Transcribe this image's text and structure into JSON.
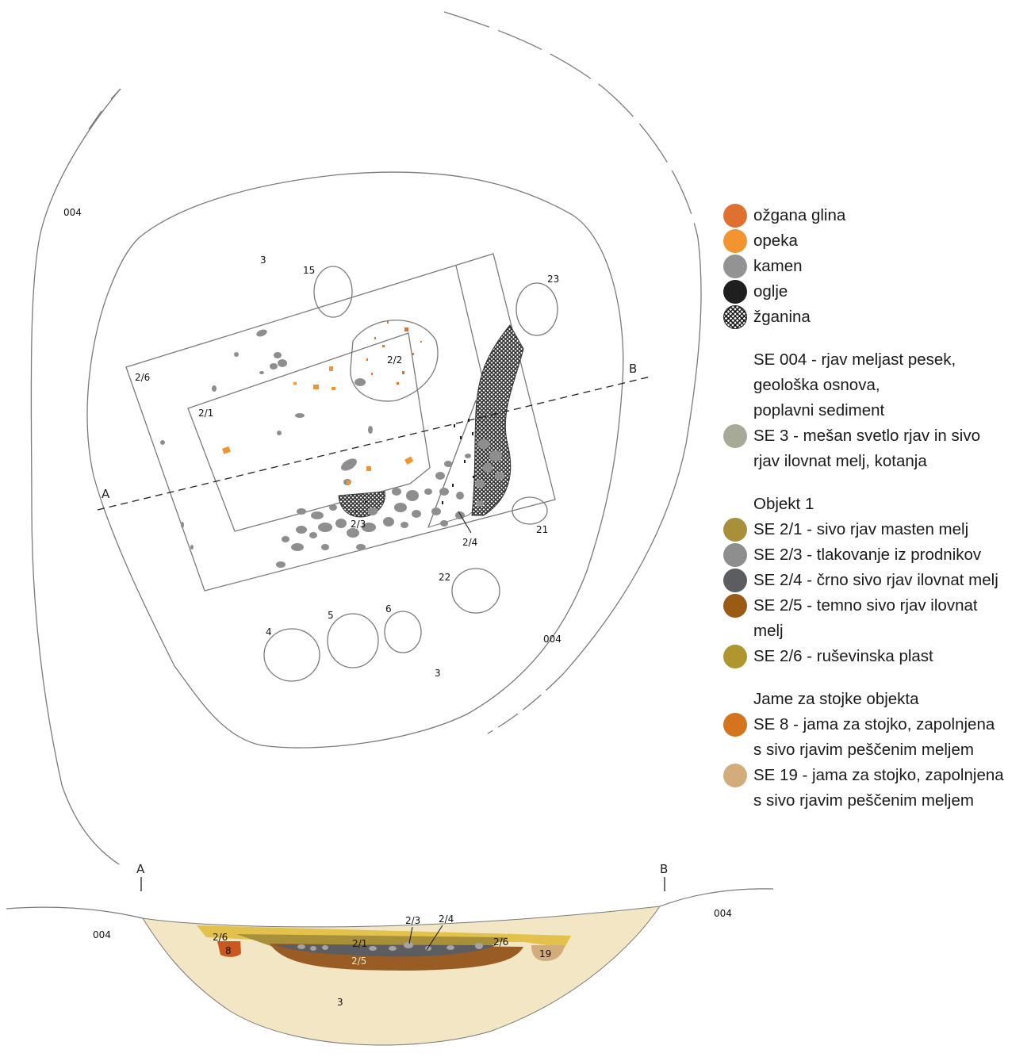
{
  "plan": {
    "labels": {
      "l004_tl": "004",
      "l004_r": "004",
      "l3_top": "3",
      "l3_bottom": "3",
      "l15": "15",
      "l23": "23",
      "l21": "21",
      "l22": "22",
      "l4": "4",
      "l5": "5",
      "l6": "6",
      "l2_6": "2/6",
      "l2_1": "2/1",
      "l2_2": "2/2",
      "l2_3": "2/3",
      "l2_4": "2/4",
      "sec_a": "A",
      "sec_b": "B"
    }
  },
  "section": {
    "labels": {
      "a": "A",
      "b": "B",
      "l004_left": "004",
      "l004_right": "004",
      "l2_6_left": "2/6",
      "l8": "8",
      "l2_1": "2/1",
      "l2_3": "2/3",
      "l2_4": "2/4",
      "l2_6_right": "2/6",
      "l2_5": "2/5",
      "l19": "19",
      "l3": "3"
    }
  },
  "legend": {
    "symbols": [
      {
        "label": "ožgana glina",
        "color": "#e07030"
      },
      {
        "label": "opeka",
        "color": "#f29530"
      },
      {
        "label": "kamen",
        "color": "#939393"
      },
      {
        "label": "oglje",
        "color": "#1f1f1f"
      },
      {
        "label": "žganina",
        "color": "#444444",
        "pattern": "crosshatch"
      }
    ],
    "se004": [
      "SE 004 - rjav meljast pesek,",
      "geološka osnova,",
      "poplavni sediment"
    ],
    "se3": {
      "lines": [
        "SE 3 - mešan svetlo rjav in sivo",
        "rjav ilovnat melj, kotanja"
      ],
      "color": "#a8aa98"
    },
    "objekt_title": "Objekt 1",
    "objekt": [
      {
        "lines": [
          "SE 2/1 - sivo rjav masten melj"
        ],
        "color": "#a8903a"
      },
      {
        "lines": [
          "SE 2/3 - tlakovanje iz prodnikov"
        ],
        "color": "#8e8e8e"
      },
      {
        "lines": [
          "SE 2/4 - črno sivo rjav ilovnat melj"
        ],
        "color": "#5c5d60"
      },
      {
        "lines": [
          "SE 2/5 - temno sivo rjav ilovnat",
          "melj"
        ],
        "color": "#9a5c15"
      },
      {
        "lines": [
          "SE 2/6 - ruševinska plast"
        ],
        "color": "#b0962e"
      }
    ],
    "jame_title": "Jame za stojke objekta",
    "jame": [
      {
        "lines": [
          "SE 8 - jama za stojko, zapolnjena",
          "s sivo rjavim peščenim meljem"
        ],
        "color": "#d5741e"
      },
      {
        "lines": [
          "SE 19 - jama za stojko, zapolnjena",
          "s sivo rjavim peščenim meljem"
        ],
        "color": "#d3ac7c"
      }
    ]
  }
}
